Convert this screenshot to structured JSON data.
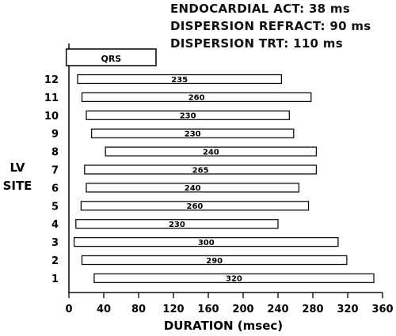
{
  "header": {
    "line1": "ENDOCARDIAL  ACT: 38 ms",
    "line2": "DISPERSION  REFRACT: 90 ms",
    "line3": "DISPERSION  TRT: 110 ms"
  },
  "chart_data": {
    "type": "bar",
    "orientation": "horizontal-range",
    "xlabel": "DURATION  (msec)",
    "ylabel": [
      "LV",
      "SITE"
    ],
    "xlim": [
      0,
      360
    ],
    "x_ticks": [
      0,
      40,
      80,
      120,
      160,
      200,
      240,
      280,
      320,
      360
    ],
    "grid": false,
    "qrs": {
      "label": "QRS",
      "start": -3,
      "end": 100
    },
    "bars": [
      {
        "site": "12",
        "start": 10,
        "end": 244,
        "label": "235"
      },
      {
        "site": "11",
        "start": 15,
        "end": 278,
        "label": "260"
      },
      {
        "site": "10",
        "start": 20,
        "end": 253,
        "label": "230"
      },
      {
        "site": "9",
        "start": 26,
        "end": 258,
        "label": "230"
      },
      {
        "site": "8",
        "start": 42,
        "end": 284,
        "label": "240"
      },
      {
        "site": "7",
        "start": 18,
        "end": 284,
        "label": "265"
      },
      {
        "site": "6",
        "start": 20,
        "end": 264,
        "label": "240"
      },
      {
        "site": "5",
        "start": 14,
        "end": 275,
        "label": "260"
      },
      {
        "site": "4",
        "start": 8,
        "end": 240,
        "label": "230"
      },
      {
        "site": "3",
        "start": 6,
        "end": 309,
        "label": "300"
      },
      {
        "site": "2",
        "start": 15,
        "end": 319,
        "label": "290"
      },
      {
        "site": "1",
        "start": 29,
        "end": 350,
        "label": "320"
      }
    ]
  }
}
